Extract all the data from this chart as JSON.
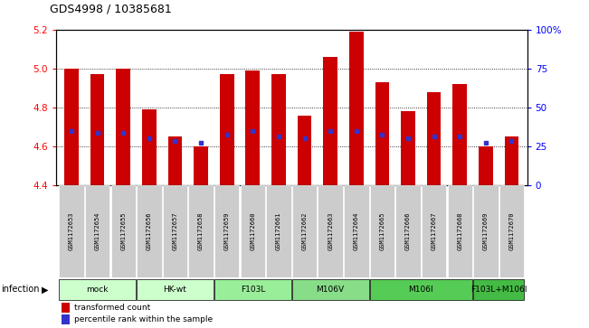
{
  "title": "GDS4998 / 10385681",
  "samples": [
    "GSM1172653",
    "GSM1172654",
    "GSM1172655",
    "GSM1172656",
    "GSM1172657",
    "GSM1172658",
    "GSM1172659",
    "GSM1172660",
    "GSM1172661",
    "GSM1172662",
    "GSM1172663",
    "GSM1172664",
    "GSM1172665",
    "GSM1172666",
    "GSM1172667",
    "GSM1172668",
    "GSM1172669",
    "GSM1172670"
  ],
  "red_bar_tops": [
    5.0,
    4.97,
    5.0,
    4.79,
    4.65,
    4.6,
    4.97,
    4.99,
    4.97,
    4.76,
    5.06,
    5.19,
    4.93,
    4.78,
    4.88,
    4.92,
    4.6,
    4.65
  ],
  "blue_positions": [
    4.68,
    4.67,
    4.67,
    4.64,
    4.63,
    4.62,
    4.66,
    4.68,
    4.65,
    4.64,
    4.68,
    4.68,
    4.66,
    4.64,
    4.65,
    4.65,
    4.62,
    4.63
  ],
  "ymin": 4.4,
  "ymax": 5.2,
  "yticks_left": [
    4.4,
    4.6,
    4.8,
    5.0,
    5.2
  ],
  "ytick_right_labels": [
    "0",
    "25",
    "50",
    "75",
    "100%"
  ],
  "group_spans": [
    {
      "label": "mock",
      "indices": [
        0,
        1,
        2
      ],
      "color": "#ccffcc"
    },
    {
      "label": "HK-wt",
      "indices": [
        3,
        4,
        5
      ],
      "color": "#ccffcc"
    },
    {
      "label": "F103L",
      "indices": [
        6,
        7,
        8
      ],
      "color": "#99ee99"
    },
    {
      "label": "M106V",
      "indices": [
        9,
        10,
        11
      ],
      "color": "#88dd88"
    },
    {
      "label": "M106I",
      "indices": [
        12,
        13,
        14,
        15
      ],
      "color": "#55cc55"
    },
    {
      "label": "F103L+M106I",
      "indices": [
        16,
        17
      ],
      "color": "#44bb44"
    }
  ],
  "bar_color": "#cc0000",
  "blue_color": "#3333cc",
  "bg_sample": "#cccccc",
  "infection_label": "infection",
  "legend1": "transformed count",
  "legend2": "percentile rank within the sample"
}
